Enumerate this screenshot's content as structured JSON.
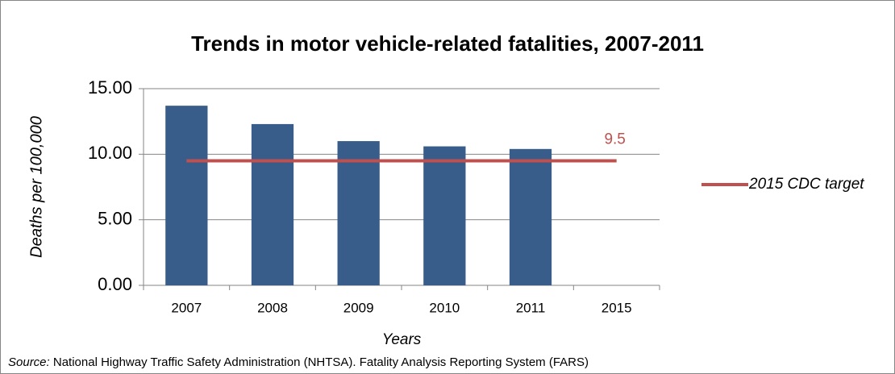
{
  "chart_data": {
    "type": "bar",
    "title": "Trends in motor vehicle-related fatalities, 2007-2011",
    "y_label": "Deaths per 100,000",
    "x_label": "Years",
    "source_label": "Source:",
    "source": "National Highway Traffic Safety Administration (NHTSA). Fatality Analysis Reporting System (FARS)",
    "categories": [
      "2007",
      "2008",
      "2009",
      "2010",
      "2011",
      "2015"
    ],
    "series": [
      {
        "type": "bar",
        "color": "#385d8a",
        "values": [
          13.7,
          12.3,
          11.0,
          10.6,
          10.4,
          null
        ]
      },
      {
        "type": "line",
        "name": "2015 CDC target",
        "color": "#c0504d",
        "values": [
          9.5,
          9.5,
          9.5,
          9.5,
          9.5,
          9.5
        ]
      }
    ],
    "ylim": [
      0,
      15
    ],
    "yticks": [
      {
        "value": 0,
        "label": "0.00"
      },
      {
        "value": 5,
        "label": "5.00"
      },
      {
        "value": 10,
        "label": "10.00"
      },
      {
        "value": 15,
        "label": "15.00"
      }
    ],
    "grid": true,
    "legend": "right"
  }
}
